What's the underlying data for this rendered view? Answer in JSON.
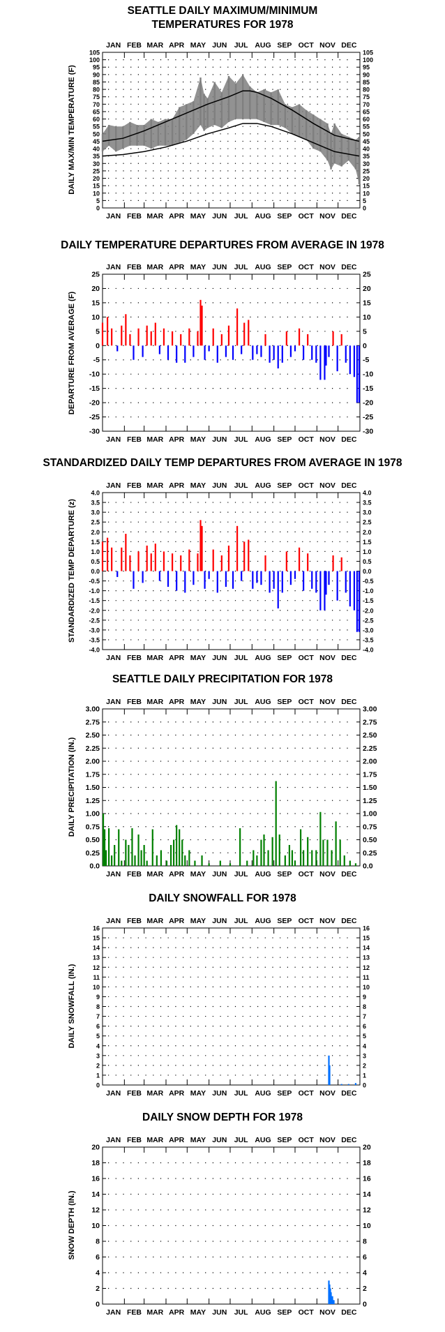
{
  "chart_data": [
    {
      "type": "line",
      "title": "SEATTLE DAILY MAXIMUM/MINIMUM",
      "title2": "TEMPERATURES FOR 1978",
      "ylabel": "DAILY MAX/MIN TEMPERATURE (F)",
      "xlabel": "",
      "months": [
        "JAN",
        "FEB",
        "MAR",
        "APR",
        "MAY",
        "JUN",
        "JUL",
        "AUG",
        "SEP",
        "OCT",
        "NOV",
        "DEC"
      ],
      "ylim": [
        0,
        105
      ],
      "yticks": [
        "0",
        "5",
        "10",
        "15",
        "20",
        "25",
        "30",
        "35",
        "40",
        "45",
        "50",
        "55",
        "60",
        "65",
        "70",
        "75",
        "80",
        "85",
        "90",
        "95",
        "100",
        "105"
      ],
      "grid": true,
      "colors": {
        "observed": "#7f7f7f",
        "normals": "#000000"
      },
      "series": [
        {
          "key": "daily_range",
          "style": "range",
          "x": [
            1,
            10,
            20,
            30,
            40,
            50,
            60,
            70,
            80,
            90,
            100,
            110,
            120,
            130,
            140,
            145,
            150,
            160,
            170,
            180,
            190,
            200,
            210,
            220,
            230,
            240,
            250,
            260,
            270,
            280,
            290,
            300,
            310,
            320,
            325,
            330,
            340,
            350,
            360,
            365
          ],
          "high": [
            50,
            56,
            55,
            55,
            58,
            56,
            56,
            60,
            58,
            60,
            60,
            68,
            70,
            72,
            88,
            77,
            74,
            85,
            78,
            89,
            84,
            90,
            82,
            78,
            80,
            78,
            80,
            70,
            68,
            70,
            66,
            63,
            60,
            57,
            50,
            57,
            50,
            48,
            46,
            48
          ],
          "low": [
            38,
            42,
            38,
            40,
            42,
            42,
            42,
            40,
            42,
            42,
            42,
            44,
            46,
            50,
            56,
            52,
            54,
            56,
            54,
            58,
            60,
            60,
            60,
            60,
            58,
            56,
            56,
            54,
            50,
            48,
            46,
            40,
            38,
            32,
            26,
            30,
            28,
            32,
            26,
            16
          ]
        },
        {
          "key": "normal_high",
          "style": "line",
          "x": [
            1,
            30,
            60,
            90,
            120,
            150,
            180,
            200,
            210,
            220,
            240,
            270,
            300,
            330,
            365
          ],
          "y": [
            45,
            47,
            52,
            58,
            64,
            70,
            75,
            79,
            79,
            78,
            74,
            66,
            57,
            49,
            45
          ]
        },
        {
          "key": "normal_low",
          "style": "line",
          "x": [
            1,
            30,
            60,
            90,
            120,
            150,
            180,
            200,
            210,
            220,
            240,
            270,
            300,
            330,
            365
          ],
          "y": [
            35,
            36,
            38,
            41,
            45,
            50,
            54,
            57,
            57,
            57,
            55,
            50,
            44,
            38,
            35
          ]
        }
      ]
    },
    {
      "type": "bar",
      "title": "DAILY TEMPERATURE DEPARTURES FROM AVERAGE IN 1978",
      "ylabel": "DEPARTURE FROM AVERAGE (F)",
      "xlabel": "",
      "months": [
        "JAN",
        "FEB",
        "MAR",
        "APR",
        "MAY",
        "JUN",
        "JUL",
        "AUG",
        "SEP",
        "OCT",
        "NOV",
        "DEC"
      ],
      "ylim": [
        -30,
        25
      ],
      "yticks": [
        "-30",
        "-25",
        "-20",
        "-15",
        "-10",
        "-5",
        "0",
        "5",
        "10",
        "15",
        "20",
        "25"
      ],
      "grid": true,
      "colors": {
        "positive": "#ff0000",
        "negative": "#0000ff"
      },
      "x": [
        1,
        8,
        14,
        22,
        28,
        34,
        40,
        45,
        52,
        58,
        64,
        70,
        76,
        82,
        88,
        94,
        100,
        106,
        112,
        118,
        124,
        130,
        136,
        140,
        142,
        146,
        152,
        158,
        164,
        170,
        176,
        180,
        186,
        192,
        198,
        202,
        208,
        214,
        220,
        226,
        232,
        238,
        244,
        250,
        256,
        262,
        268,
        274,
        280,
        286,
        292,
        298,
        304,
        310,
        316,
        318,
        322,
        328,
        334,
        340,
        346,
        352,
        358,
        362,
        365
      ],
      "values": [
        8,
        10,
        6,
        -2,
        7,
        11,
        4,
        -5,
        6,
        -4,
        7,
        5,
        8,
        -3,
        6,
        -5,
        5,
        -6,
        4,
        -6,
        6,
        -4,
        5,
        16,
        14,
        -5,
        -2,
        6,
        -6,
        4,
        -4,
        7,
        -5,
        13,
        -3,
        8,
        9,
        -5,
        -3,
        -4,
        4,
        -6,
        -5,
        -8,
        -6,
        5,
        -4,
        -2,
        6,
        -5,
        4,
        -5,
        -6,
        -12,
        -12,
        -7,
        -4,
        5,
        -9,
        4,
        -6,
        -10,
        -11,
        -20,
        -20
      ]
    },
    {
      "type": "bar",
      "title": "STANDARDIZED DAILY TEMP DEPARTURES FROM AVERAGE IN 1978",
      "ylabel": "STANDARDIZED TEMP DEPARTURE (z)",
      "xlabel": "",
      "months": [
        "JAN",
        "FEB",
        "MAR",
        "APR",
        "MAY",
        "JUN",
        "JUL",
        "AUG",
        "SEP",
        "OCT",
        "NOV",
        "DEC"
      ],
      "ylim": [
        -4.0,
        4.0
      ],
      "yticks": [
        "-4.0",
        "-3.5",
        "-3.0",
        "-2.5",
        "-2.0",
        "-1.5",
        "-1.0",
        "-0.5",
        "0.0",
        "0.5",
        "1.0",
        "1.5",
        "2.0",
        "2.5",
        "3.0",
        "3.5",
        "4.0"
      ],
      "grid": true,
      "colors": {
        "positive": "#ff0000",
        "negative": "#0000ff"
      },
      "x": [
        1,
        8,
        14,
        22,
        28,
        34,
        40,
        45,
        52,
        58,
        64,
        70,
        76,
        82,
        88,
        94,
        100,
        106,
        112,
        118,
        124,
        130,
        136,
        140,
        142,
        146,
        152,
        158,
        164,
        170,
        176,
        180,
        186,
        192,
        198,
        202,
        208,
        214,
        220,
        226,
        232,
        238,
        244,
        250,
        256,
        262,
        268,
        274,
        280,
        286,
        292,
        298,
        304,
        310,
        316,
        318,
        322,
        328,
        334,
        340,
        346,
        352,
        358,
        362,
        365
      ],
      "values": [
        1.5,
        1.7,
        1.2,
        -0.3,
        1.2,
        1.9,
        0.8,
        -0.9,
        1.0,
        -0.6,
        1.3,
        0.9,
        1.4,
        -0.5,
        1.0,
        -0.8,
        0.9,
        -1.0,
        0.8,
        -1.1,
        1.1,
        -0.7,
        0.9,
        2.6,
        2.3,
        -0.9,
        -0.4,
        1.1,
        -1.1,
        0.8,
        -0.8,
        1.3,
        -0.9,
        2.3,
        -0.5,
        1.5,
        1.6,
        -0.9,
        -0.6,
        -0.7,
        0.8,
        -1.1,
        -0.9,
        -1.9,
        -1.1,
        1.0,
        -0.7,
        -0.4,
        1.2,
        -1.0,
        0.9,
        -0.9,
        -1.1,
        -2.0,
        -2.0,
        -1.2,
        -0.7,
        0.8,
        -1.5,
        0.7,
        -1.1,
        -1.8,
        -2.0,
        -3.1,
        -3.1
      ]
    },
    {
      "type": "bar",
      "title": "SEATTLE DAILY PRECIPITATION FOR 1978",
      "ylabel": "DAILY PRECIPITATION (IN.)",
      "xlabel": "",
      "months": [
        "JAN",
        "FEB",
        "MAR",
        "APR",
        "MAY",
        "JUN",
        "JUL",
        "AUG",
        "SEP",
        "OCT",
        "NOV",
        "DEC"
      ],
      "ylim": [
        0,
        3.0
      ],
      "yticks": [
        "0.0",
        "0.25",
        "0.50",
        "0.75",
        "1.00",
        "1.25",
        "1.50",
        "1.75",
        "2.00",
        "2.25",
        "2.50",
        "2.75",
        "3.00"
      ],
      "grid": true,
      "colors": {
        "bars": "#007f00"
      },
      "x": [
        2,
        4,
        6,
        10,
        14,
        18,
        24,
        28,
        34,
        38,
        43,
        47,
        52,
        56,
        60,
        64,
        72,
        78,
        84,
        92,
        98,
        102,
        106,
        110,
        114,
        118,
        124,
        132,
        142,
        152,
        168,
        182,
        196,
        206,
        215,
        220,
        226,
        230,
        236,
        242,
        247,
        252,
        260,
        266,
        270,
        274,
        282,
        286,
        292,
        298,
        304,
        310,
        314,
        320,
        326,
        332,
        338,
        344,
        352,
        360
      ],
      "values": [
        1.0,
        0.7,
        0.3,
        0.72,
        0.2,
        0.4,
        0.7,
        0.1,
        0.5,
        0.4,
        0.72,
        0.2,
        0.6,
        0.3,
        0.4,
        0.1,
        0.7,
        0.2,
        0.3,
        0.1,
        0.4,
        0.5,
        0.78,
        0.7,
        0.5,
        0.2,
        0.3,
        0.1,
        0.2,
        0.05,
        0.1,
        0.05,
        0.72,
        0.1,
        0.3,
        0.2,
        0.5,
        0.6,
        0.3,
        0.55,
        1.62,
        0.6,
        0.2,
        0.4,
        0.3,
        0.1,
        0.7,
        0.3,
        0.55,
        0.3,
        0.3,
        1.03,
        0.5,
        0.5,
        0.3,
        0.85,
        0.5,
        0.2,
        0.1,
        0.05
      ]
    },
    {
      "type": "bar",
      "title": "DAILY SNOWFALL FOR 1978",
      "ylabel": "DAILY SNOWFALL (IN.)",
      "xlabel": "",
      "months": [
        "JAN",
        "FEB",
        "MAR",
        "APR",
        "MAY",
        "JUN",
        "JUL",
        "AUG",
        "SEP",
        "OCT",
        "NOV",
        "DEC"
      ],
      "ylim": [
        0,
        16
      ],
      "yticks": [
        "0",
        "1",
        "2",
        "3",
        "4",
        "5",
        "6",
        "7",
        "8",
        "9",
        "10",
        "11",
        "12",
        "13",
        "14",
        "15",
        "16"
      ],
      "grid": true,
      "colors": {
        "bars": "#0070ff"
      },
      "x": [
        322,
        323,
        340,
        350,
        360
      ],
      "values": [
        3.0,
        2.0,
        0.1,
        0.1,
        0.2
      ]
    },
    {
      "type": "bar",
      "title": "DAILY SNOW DEPTH FOR 1978",
      "ylabel": "SNOW DEPTH (IN.)",
      "xlabel": "",
      "months": [
        "JAN",
        "FEB",
        "MAR",
        "APR",
        "MAY",
        "JUN",
        "JUL",
        "AUG",
        "SEP",
        "OCT",
        "NOV",
        "DEC"
      ],
      "ylim": [
        0,
        20
      ],
      "yticks": [
        "0",
        "2",
        "4",
        "6",
        "8",
        "10",
        "12",
        "14",
        "16",
        "18",
        "20"
      ],
      "grid": true,
      "colors": {
        "bars": "#0070ff"
      },
      "x": [
        322,
        323,
        324,
        325,
        326,
        327,
        328,
        329
      ],
      "values": [
        3.0,
        2.5,
        2.0,
        1.5,
        1.0,
        1.0,
        0.5,
        0.5
      ]
    }
  ]
}
